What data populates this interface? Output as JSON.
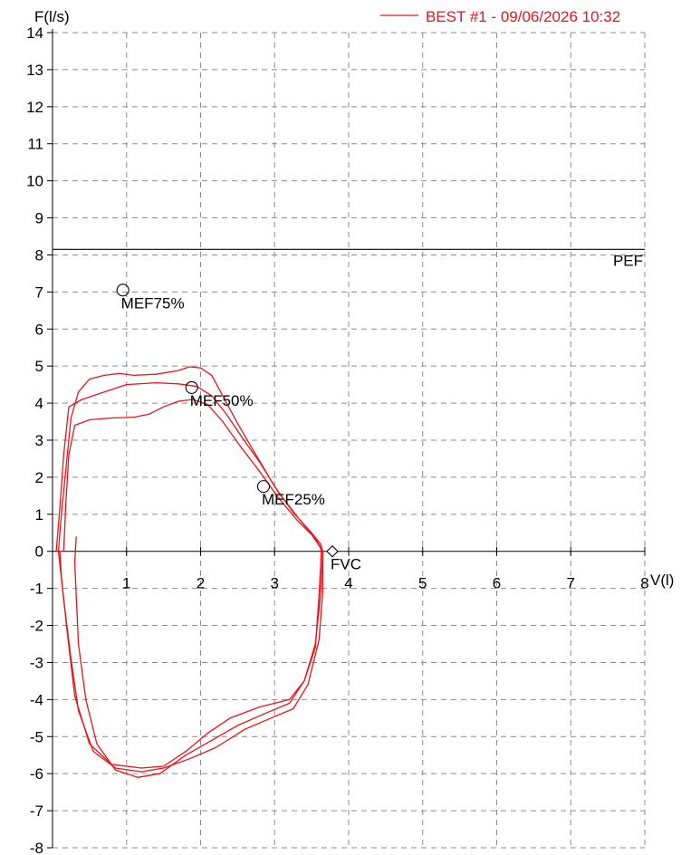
{
  "chart_data": {
    "type": "line",
    "ylabel": "F(l/s)",
    "xlabel": "V(l)",
    "xlim": [
      0,
      8
    ],
    "ylim": [
      -8,
      14
    ],
    "x_ticks": [
      "1",
      "2",
      "3",
      "4",
      "5",
      "6",
      "7",
      "8"
    ],
    "y_ticks": [
      "14",
      "13",
      "12",
      "11",
      "10",
      "9",
      "8",
      "7",
      "6",
      "5",
      "4",
      "3",
      "2",
      "1",
      "0",
      "-1",
      "-2",
      "-3",
      "-4",
      "-5",
      "-6",
      "-7",
      "-8"
    ],
    "grid": true,
    "legend": {
      "label": "BEST #1 - 09/06/2026  10:32",
      "placement": "top-right"
    },
    "series_color": "#e8141c",
    "reference_line": {
      "label": "PEF",
      "y": 8.15
    },
    "markers": [
      {
        "label": "MEF75%",
        "x": 0.95,
        "y": 7.05,
        "shape": "circle"
      },
      {
        "label": "MEF50%",
        "x": 1.88,
        "y": 4.42,
        "shape": "circle"
      },
      {
        "label": "MEF25%",
        "x": 2.85,
        "y": 1.75,
        "shape": "circle"
      },
      {
        "label": "FVC",
        "x": 3.78,
        "y": 0.0,
        "shape": "diamond"
      }
    ],
    "series": [
      {
        "points": [
          [
            0.08,
            0
          ],
          [
            0.12,
            1.0
          ],
          [
            0.18,
            2.2
          ],
          [
            0.25,
            3.6
          ],
          [
            0.35,
            4.3
          ],
          [
            0.5,
            4.65
          ],
          [
            0.7,
            4.75
          ],
          [
            0.9,
            4.8
          ],
          [
            1.1,
            4.75
          ],
          [
            1.4,
            4.78
          ],
          [
            1.7,
            4.88
          ],
          [
            1.85,
            4.98
          ],
          [
            2.0,
            4.95
          ],
          [
            2.15,
            4.75
          ],
          [
            2.3,
            4.2
          ],
          [
            2.5,
            3.45
          ],
          [
            2.75,
            2.6
          ],
          [
            3.0,
            1.75
          ],
          [
            3.25,
            1.05
          ],
          [
            3.5,
            0.5
          ],
          [
            3.62,
            0.2
          ],
          [
            3.65,
            0
          ],
          [
            3.62,
            -1.2
          ],
          [
            3.55,
            -2.5
          ],
          [
            3.4,
            -3.5
          ],
          [
            3.2,
            -4.0
          ],
          [
            2.8,
            -4.2
          ],
          [
            2.4,
            -4.5
          ],
          [
            2.1,
            -4.9
          ],
          [
            1.8,
            -5.4
          ],
          [
            1.5,
            -5.8
          ],
          [
            1.2,
            -5.85
          ],
          [
            0.8,
            -5.75
          ],
          [
            0.5,
            -5.2
          ],
          [
            0.3,
            -3.9
          ],
          [
            0.2,
            -2.2
          ],
          [
            0.12,
            -0.7
          ],
          [
            0.1,
            0
          ]
        ]
      },
      {
        "points": [
          [
            0.05,
            0
          ],
          [
            0.1,
            1.2
          ],
          [
            0.15,
            2.6
          ],
          [
            0.22,
            3.9
          ],
          [
            0.4,
            4.1
          ],
          [
            0.7,
            4.3
          ],
          [
            1.0,
            4.5
          ],
          [
            1.4,
            4.55
          ],
          [
            1.7,
            4.52
          ],
          [
            1.95,
            4.45
          ],
          [
            2.15,
            4.2
          ],
          [
            2.35,
            3.7
          ],
          [
            2.55,
            3.1
          ],
          [
            2.8,
            2.4
          ],
          [
            3.05,
            1.6
          ],
          [
            3.3,
            0.95
          ],
          [
            3.55,
            0.35
          ],
          [
            3.65,
            0
          ],
          [
            3.65,
            -1.1
          ],
          [
            3.6,
            -2.4
          ],
          [
            3.45,
            -3.6
          ],
          [
            3.25,
            -4.25
          ],
          [
            2.95,
            -4.5
          ],
          [
            2.6,
            -4.8
          ],
          [
            2.2,
            -5.3
          ],
          [
            1.85,
            -5.6
          ],
          [
            1.5,
            -5.85
          ],
          [
            1.2,
            -5.95
          ],
          [
            0.85,
            -5.85
          ],
          [
            0.55,
            -5.4
          ],
          [
            0.35,
            -4.3
          ],
          [
            0.25,
            -2.9
          ],
          [
            0.15,
            -1.3
          ],
          [
            0.08,
            0
          ]
        ]
      },
      {
        "points": [
          [
            0.15,
            0
          ],
          [
            0.18,
            1.3
          ],
          [
            0.22,
            2.6
          ],
          [
            0.3,
            3.4
          ],
          [
            0.5,
            3.55
          ],
          [
            0.8,
            3.6
          ],
          [
            1.1,
            3.62
          ],
          [
            1.3,
            3.7
          ],
          [
            1.5,
            3.9
          ],
          [
            1.7,
            4.05
          ],
          [
            1.9,
            4.1
          ],
          [
            2.1,
            3.95
          ],
          [
            2.3,
            3.5
          ],
          [
            2.55,
            2.8
          ],
          [
            2.8,
            2.15
          ],
          [
            3.05,
            1.45
          ],
          [
            3.3,
            0.85
          ],
          [
            3.5,
            0.45
          ],
          [
            3.62,
            0.1
          ],
          [
            3.63,
            0
          ],
          [
            3.6,
            -1.2
          ],
          [
            3.55,
            -2.6
          ],
          [
            3.4,
            -3.5
          ],
          [
            3.2,
            -4.1
          ],
          [
            2.9,
            -4.35
          ],
          [
            2.5,
            -4.7
          ],
          [
            2.15,
            -5.1
          ],
          [
            1.8,
            -5.5
          ],
          [
            1.45,
            -6.0
          ],
          [
            1.15,
            -6.1
          ],
          [
            0.85,
            -5.9
          ],
          [
            0.6,
            -5.2
          ],
          [
            0.45,
            -4.0
          ],
          [
            0.35,
            -2.5
          ],
          [
            0.32,
            -1.2
          ],
          [
            0.3,
            -0.3
          ],
          [
            0.32,
            0.4
          ]
        ]
      }
    ]
  }
}
